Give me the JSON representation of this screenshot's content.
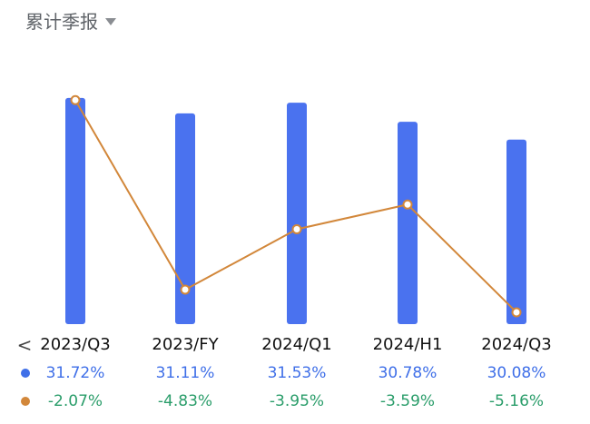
{
  "header": {
    "title": "累计季报"
  },
  "colors": {
    "bar": "#4a72ef",
    "line": "#d2873a",
    "positive_text": "#3f6fe8",
    "negative_text": "#2a9d6a"
  },
  "nav": {
    "back_icon": "chevron-left-icon",
    "back_glyph": "<"
  },
  "chart_data": {
    "type": "bar",
    "categories": [
      "2023/Q3",
      "2023/FY",
      "2024/Q1",
      "2024/H1",
      "2024/Q3"
    ],
    "series": [
      {
        "values": [
          31.72,
          31.11,
          31.53,
          30.78,
          30.08
        ],
        "labels": [
          "31.72%",
          "31.11%",
          "31.53%",
          "30.78%",
          "30.08%"
        ],
        "kind": "bar",
        "color": "#4a72ef"
      },
      {
        "values": [
          -2.07,
          -4.83,
          -3.95,
          -3.59,
          -5.16
        ],
        "labels": [
          "-2.07%",
          "-4.83%",
          "-3.95%",
          "-3.59%",
          "-5.16%"
        ],
        "kind": "line",
        "color": "#d2873a"
      }
    ],
    "grid": false,
    "legend": "none"
  }
}
